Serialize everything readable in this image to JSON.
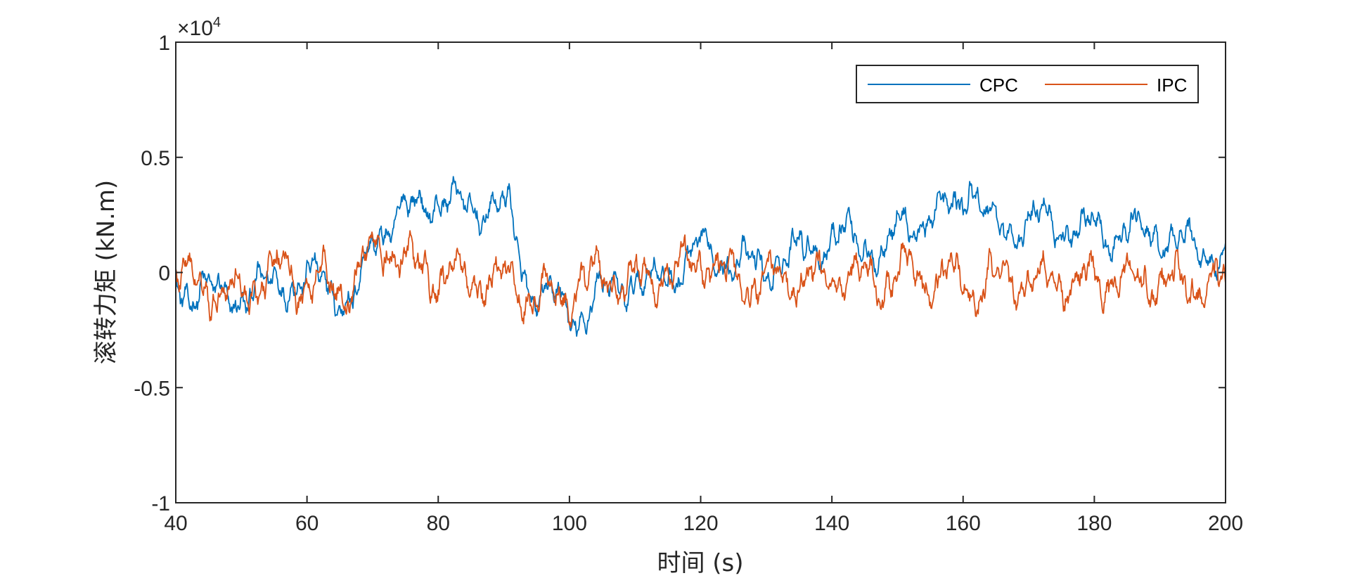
{
  "chart_data": {
    "type": "line",
    "title": "",
    "xlabel": "时间 (s)",
    "ylabel": "滚转力矩 (kN.m)",
    "xlim": [
      40,
      200
    ],
    "ylim": [
      -1,
      1
    ],
    "x_ticks": [
      40,
      60,
      80,
      100,
      120,
      140,
      160,
      180,
      200
    ],
    "x_tick_labels": [
      "40",
      "60",
      "80",
      "100",
      "120",
      "140",
      "160",
      "180",
      "200"
    ],
    "y_ticks": [
      -1,
      -0.5,
      0,
      0.5,
      1
    ],
    "y_tick_labels": [
      "-1",
      "-0.5",
      "0",
      "0.5",
      "1"
    ],
    "y_exponent": {
      "base": "×10",
      "power": "4",
      "note": "values in units of 10^4"
    },
    "grid": false,
    "legend_position": "top-right",
    "series": [
      {
        "name": "CPC",
        "color": "#0072BD",
        "anchor_x": [
          40,
          41,
          44,
          47,
          50,
          53,
          56,
          59,
          62,
          65,
          67,
          69,
          70,
          72,
          74,
          76,
          78,
          80,
          82,
          84,
          86,
          88,
          90,
          91,
          92,
          93,
          94,
          96,
          98,
          100,
          102,
          104,
          106,
          108,
          110,
          112,
          114,
          116,
          118,
          120,
          122,
          125,
          128,
          130,
          132,
          135,
          138,
          140,
          142,
          145,
          148,
          150,
          153,
          156,
          158,
          160,
          161,
          162,
          163,
          165,
          168,
          170,
          172,
          175,
          178,
          180,
          182,
          185,
          188,
          191,
          194,
          197,
          200
        ],
        "anchor_y": [
          -0.05,
          -0.1,
          -0.05,
          -0.12,
          -0.1,
          -0.07,
          -0.03,
          -0.05,
          -0.02,
          -0.1,
          -0.15,
          0.03,
          0.15,
          0.2,
          0.25,
          0.27,
          0.3,
          0.32,
          0.31,
          0.28,
          0.27,
          0.3,
          0.28,
          0.25,
          0.12,
          0.0,
          -0.08,
          -0.1,
          -0.12,
          -0.18,
          -0.2,
          -0.1,
          -0.08,
          -0.05,
          -0.03,
          -0.06,
          -0.02,
          0.0,
          0.05,
          0.1,
          0.08,
          0.05,
          0.03,
          0.02,
          0.05,
          0.1,
          0.12,
          0.15,
          0.17,
          0.12,
          0.08,
          0.2,
          0.22,
          0.25,
          0.27,
          0.33,
          0.4,
          0.35,
          0.25,
          0.2,
          0.18,
          0.22,
          0.25,
          0.2,
          0.18,
          0.2,
          0.15,
          0.18,
          0.17,
          0.15,
          0.12,
          0.1,
          0.05
        ],
        "noise_amplitude": 0.1
      },
      {
        "name": "IPC",
        "color": "#D95319",
        "anchor_x": [
          40,
          41,
          44,
          47,
          50,
          53,
          56,
          59,
          62,
          65,
          67,
          69,
          71,
          73,
          76,
          79,
          82,
          85,
          88,
          91,
          94,
          97,
          100,
          103,
          106,
          109,
          112,
          115,
          118,
          121,
          124,
          127,
          130,
          133,
          136,
          139,
          142,
          145,
          148,
          150,
          153,
          156,
          159,
          161,
          162,
          163,
          165,
          168,
          171,
          174,
          177,
          180,
          183,
          186,
          189,
          192,
          195,
          198,
          200
        ],
        "anchor_y": [
          0.02,
          -0.05,
          -0.03,
          -0.08,
          -0.1,
          -0.02,
          0.02,
          -0.05,
          -0.03,
          -0.08,
          -0.05,
          0.05,
          0.12,
          0.1,
          0.02,
          -0.02,
          0.0,
          -0.05,
          -0.03,
          -0.05,
          -0.1,
          -0.12,
          -0.08,
          -0.03,
          -0.02,
          -0.05,
          -0.03,
          0.0,
          0.03,
          0.05,
          0.0,
          -0.05,
          -0.03,
          -0.02,
          -0.03,
          -0.02,
          0.0,
          -0.02,
          -0.05,
          0.0,
          -0.02,
          -0.03,
          -0.02,
          -0.05,
          -0.1,
          -0.05,
          -0.02,
          -0.03,
          -0.05,
          -0.02,
          -0.05,
          -0.03,
          -0.02,
          -0.05,
          -0.03,
          -0.05,
          -0.06,
          -0.05,
          -0.08
        ],
        "noise_amplitude": 0.12
      }
    ]
  }
}
